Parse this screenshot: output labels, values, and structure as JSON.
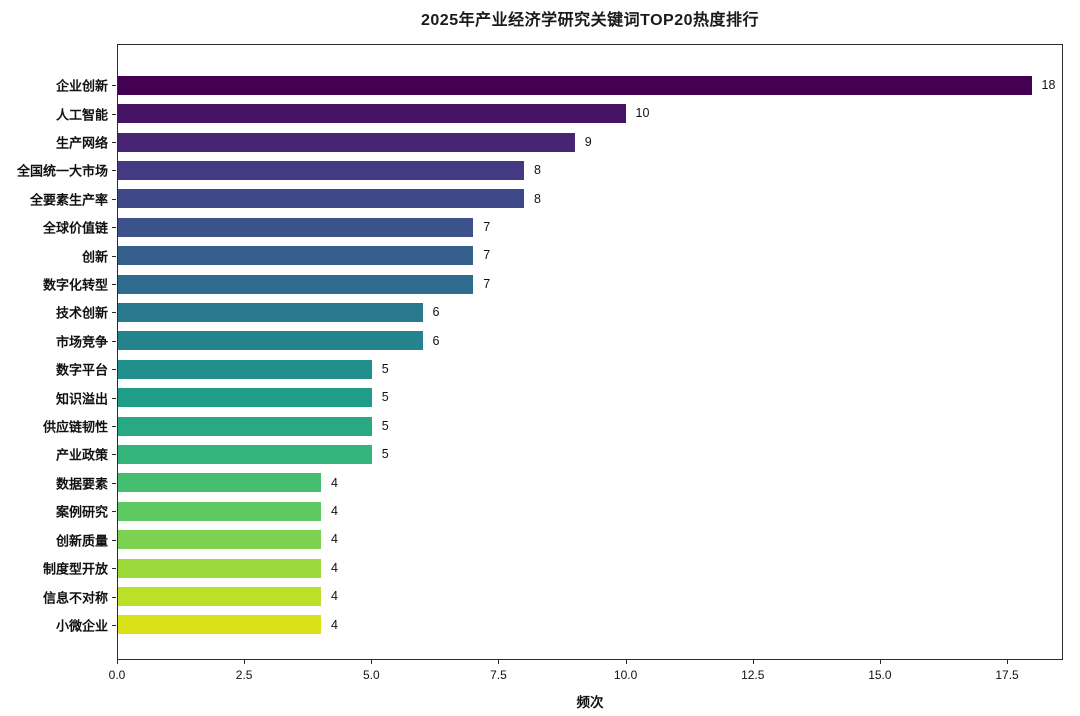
{
  "title": "2025年产业经济学研究关键词TOP20热度排行",
  "chart_data": {
    "type": "bar",
    "orientation": "horizontal",
    "title": "2025年产业经济学研究关键词TOP20热度排行",
    "categories": [
      "企业创新",
      "人工智能",
      "生产网络",
      "全国统一大市场",
      "全要素生产率",
      "全球价值链",
      "创新",
      "数字化转型",
      "技术创新",
      "市场竞争",
      "数字平台",
      "知识溢出",
      "供应链韧性",
      "产业政策",
      "数据要素",
      "案例研究",
      "创新质量",
      "制度型开放",
      "信息不对称",
      "小微企业"
    ],
    "values": [
      18,
      10,
      9,
      8,
      8,
      7,
      7,
      7,
      6,
      6,
      5,
      5,
      5,
      5,
      4,
      4,
      4,
      4,
      4,
      4
    ],
    "bar_colors": [
      "#440154",
      "#471365",
      "#482475",
      "#443a83",
      "#3f4889",
      "#3b528b",
      "#355e8d",
      "#2f6b8e",
      "#2a788e",
      "#25838e",
      "#21908c",
      "#1f9d89",
      "#27a983",
      "#32b47b",
      "#46be6f",
      "#5fc961",
      "#7cd250",
      "#9cd93b",
      "#bcdf27",
      "#d9e219"
    ],
    "xlabel": "频次",
    "ylabel": "",
    "xlim": [
      0,
      18.6
    ],
    "x_ticks": [
      0,
      2.5,
      5,
      7.5,
      10,
      12.5,
      15,
      17.5
    ],
    "x_tick_labels": [
      "0.0",
      "2.5",
      "5.0",
      "7.5",
      "10.0",
      "12.5",
      "15.0",
      "17.5"
    ],
    "grid": false,
    "legend": false,
    "value_labels": true
  },
  "colors": {
    "background": "#ffffff",
    "spine": "#2b2b2b",
    "text": "#111111"
  }
}
